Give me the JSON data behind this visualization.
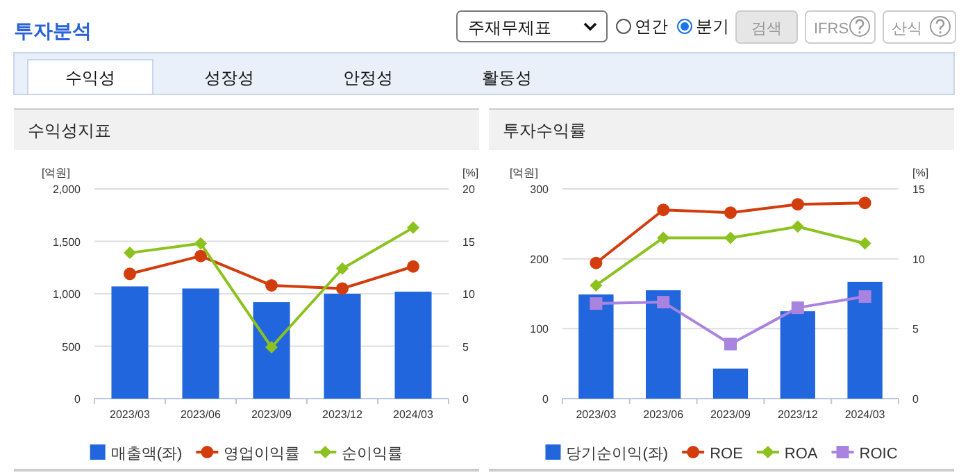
{
  "chart_data": [
    {
      "type": "other",
      "title": "투자분석",
      "annotations": [
        "주재무제표",
        "연간",
        "분기",
        "검색",
        "IFRS",
        "산식",
        "수익성",
        "성장성",
        "안정성",
        "활동성"
      ]
    },
    {
      "type": "bar",
      "title": "수익성지표",
      "ylabel": "[억원]",
      "y2label": "[%]",
      "categories": [
        "2023/03",
        "2023/06",
        "2023/09",
        "2023/12",
        "2024/03"
      ],
      "series": [
        {
          "name": "매출액(좌)",
          "type": "bar",
          "color": "#2266dd",
          "values": [
            1070,
            1050,
            920,
            1000,
            1020
          ]
        },
        {
          "name": "영업이익률",
          "type": "line",
          "axis": "y2",
          "marker": "circle",
          "color": "#d33c0c",
          "values": [
            11.9,
            13.6,
            10.8,
            10.5,
            12.6
          ]
        },
        {
          "name": "순이익률",
          "type": "line",
          "axis": "y2",
          "marker": "diamond",
          "color": "#8cc21e",
          "values": [
            13.9,
            14.8,
            4.9,
            12.4,
            16.3
          ]
        }
      ],
      "ylim": [
        0,
        2000
      ],
      "yticks": [
        0,
        500,
        {
          "value": 1000,
          "label": "1,000"
        },
        {
          "value": 1500,
          "label": "1,500"
        },
        {
          "value": 2000,
          "label": "2,000"
        }
      ],
      "y2lim": [
        0,
        20
      ],
      "y2ticks": [
        0,
        5,
        10,
        15,
        20
      ],
      "grid": "y",
      "legend": "bottom"
    },
    {
      "type": "bar",
      "title": "투자수익률",
      "ylabel": "[억원]",
      "y2label": "[%]",
      "categories": [
        "2023/03",
        "2023/06",
        "2023/09",
        "2023/12",
        "2024/03"
      ],
      "series": [
        {
          "name": "당기순이익(좌)",
          "type": "bar",
          "color": "#2266dd",
          "values": [
            149,
            155,
            43,
            125,
            167
          ]
        },
        {
          "name": "ROE",
          "type": "line",
          "axis": "y2",
          "marker": "circle",
          "color": "#d33c0c",
          "values": [
            9.7,
            13.5,
            13.3,
            13.9,
            14.0
          ]
        },
        {
          "name": "ROA",
          "type": "line",
          "axis": "y2",
          "marker": "diamond",
          "color": "#8cc21e",
          "values": [
            8.1,
            11.5,
            11.5,
            12.3,
            11.1
          ]
        },
        {
          "name": "ROIC",
          "type": "line",
          "axis": "y2",
          "marker": "square",
          "color": "#a983e0",
          "values": [
            6.8,
            6.9,
            3.9,
            6.5,
            7.3
          ]
        }
      ],
      "ylim": [
        0,
        300
      ],
      "yticks": [
        0,
        100,
        200,
        300
      ],
      "y2lim": [
        0,
        15
      ],
      "y2ticks": [
        0,
        5,
        10,
        15
      ],
      "grid": "y",
      "legend": "bottom"
    }
  ]
}
